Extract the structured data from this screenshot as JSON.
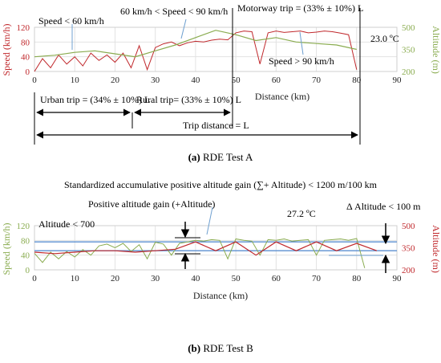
{
  "chart_data": [
    {
      "type": "line",
      "caption_letter": "(a)",
      "caption_text": " RDE Test A",
      "xlabel": "Distance (km)",
      "xlim": [
        0,
        90
      ],
      "xticks": [
        0,
        10,
        20,
        30,
        40,
        50,
        60,
        70,
        80,
        90
      ],
      "ylabel": "Speed (km/h)",
      "ylim": [
        0,
        120
      ],
      "yticks": [
        0,
        40,
        80,
        120
      ],
      "y2label": "Altitude (m)",
      "y2lim": [
        200,
        500
      ],
      "y2ticks": [
        200,
        350,
        500
      ],
      "primary_color": "#c0282c",
      "secondary_color": "#8aac50",
      "grid": true,
      "series": [
        {
          "axis": "left",
          "x": [
            0,
            2,
            4,
            6,
            8,
            10,
            12,
            14,
            16,
            18,
            20,
            22,
            24,
            26,
            28,
            30,
            32,
            34,
            36,
            38,
            40,
            42,
            44,
            46,
            48,
            50,
            52,
            54,
            56,
            58,
            60,
            62,
            64,
            66,
            68,
            70,
            72,
            74,
            76,
            78,
            80
          ],
          "values": [
            0,
            35,
            10,
            45,
            20,
            40,
            15,
            50,
            30,
            45,
            25,
            50,
            10,
            70,
            5,
            65,
            75,
            80,
            70,
            78,
            82,
            80,
            85,
            88,
            86,
            105,
            110,
            108,
            20,
            105,
            110,
            106,
            108,
            110,
            105,
            107,
            110,
            108,
            104,
            100,
            5
          ]
        },
        {
          "axis": "right",
          "x": [
            0,
            5,
            10,
            15,
            20,
            25,
            30,
            35,
            40,
            45,
            50,
            55,
            60,
            65,
            70,
            75,
            80
          ],
          "values": [
            300,
            310,
            330,
            340,
            320,
            300,
            340,
            380,
            430,
            480,
            450,
            410,
            430,
            400,
            390,
            380,
            350
          ]
        }
      ],
      "annotations": {
        "speed_low": "Speed < 60 km/h",
        "speed_mid": "60 km/h < Speed < 90 km/h",
        "motorway": "Motorway trip  = (33% ± 10%) L",
        "temperature": "23.0 ºC",
        "speed_high": "Speed > 90 km/h",
        "urban": "Urban trip = (34% ± 10%) L",
        "rural": "Rural trip= (33% ± 10%) L",
        "trip_distance": "Trip distance = L"
      }
    },
    {
      "type": "line",
      "caption_letter": "(b)",
      "caption_text": " RDE Test B",
      "title": "Standardized accumulative positive altitude gain (∑+ Altitude) < 1200 m/100 km",
      "xlabel": "Distance (km)",
      "xlim": [
        0,
        90
      ],
      "xticks": [
        0,
        10,
        20,
        30,
        40,
        50,
        60,
        70,
        80,
        90
      ],
      "ylabel": "Speed (km/h)",
      "ylim": [
        0,
        120
      ],
      "yticks": [
        0,
        40,
        80,
        120
      ],
      "y2label": "Altitude (m)",
      "y2lim": [
        200,
        500
      ],
      "y2ticks": [
        200,
        350,
        500
      ],
      "primary_color": "#8aac50",
      "secondary_color": "#c0282c",
      "grid": true,
      "series": [
        {
          "axis": "left",
          "x": [
            0,
            2,
            4,
            6,
            8,
            10,
            12,
            14,
            16,
            18,
            20,
            22,
            24,
            26,
            28,
            30,
            32,
            34,
            36,
            38,
            40,
            42,
            44,
            46,
            48,
            50,
            52,
            54,
            56,
            58,
            60,
            62,
            64,
            66,
            68,
            70,
            72,
            74,
            76,
            78,
            80,
            82
          ],
          "values": [
            45,
            20,
            48,
            30,
            50,
            35,
            55,
            40,
            65,
            70,
            60,
            72,
            50,
            68,
            30,
            75,
            70,
            40,
            72,
            76,
            80,
            78,
            82,
            80,
            30,
            84,
            80,
            78,
            40,
            82,
            80,
            84,
            78,
            80,
            82,
            40,
            80,
            82,
            84,
            80,
            85,
            5
          ]
        },
        {
          "axis": "right",
          "x": [
            0,
            5,
            10,
            15,
            20,
            25,
            30,
            35,
            40,
            45,
            50,
            55,
            60,
            65,
            70,
            75,
            80,
            85
          ],
          "values": [
            320,
            310,
            320,
            330,
            330,
            320,
            330,
            340,
            390,
            330,
            390,
            300,
            390,
            330,
            390,
            330,
            380,
            330
          ]
        }
      ],
      "reference_lines": {
        "upper_altitude": 390,
        "lower_altitude": 330
      },
      "annotations": {
        "altitude_max": "Altitude  <  700",
        "positive_gain": "Positive altitude gain (+Altitude)",
        "temperature": "27.2 ºC",
        "delta_altitude": "Δ Altitude < 100 m"
      }
    }
  ]
}
